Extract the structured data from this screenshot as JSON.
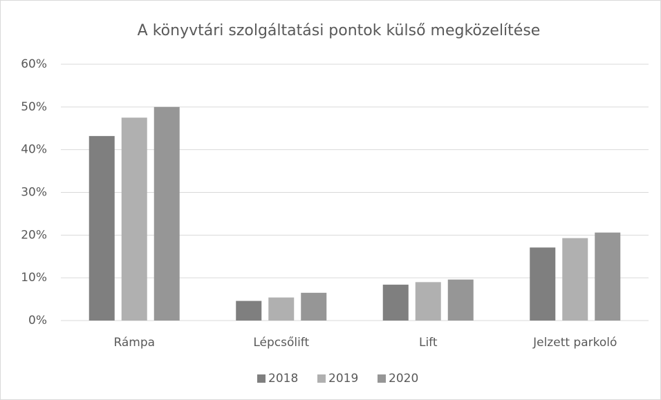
{
  "chart_data": {
    "type": "bar",
    "title": "A könyvtári szolgáltatási pontok külső megközelítése",
    "categories": [
      "Rámpa",
      "Lépcsőlift",
      "Lift",
      "Jelzett parkoló"
    ],
    "series": [
      {
        "name": "2018",
        "color": "#7f7f7f",
        "values": [
          43.2,
          4.6,
          8.4,
          17.1
        ]
      },
      {
        "name": "2019",
        "color": "#b0b0b0",
        "values": [
          47.5,
          5.4,
          9.0,
          19.3
        ]
      },
      {
        "name": "2020",
        "color": "#969696",
        "values": [
          50.0,
          6.5,
          9.6,
          20.6
        ]
      }
    ],
    "ylim": [
      0,
      60
    ],
    "yticks": [
      {
        "value": 0,
        "label": "0%"
      },
      {
        "value": 10,
        "label": "10%"
      },
      {
        "value": 20,
        "label": "20%"
      },
      {
        "value": 30,
        "label": "30%"
      },
      {
        "value": 40,
        "label": "40%"
      },
      {
        "value": 50,
        "label": "50%"
      },
      {
        "value": 60,
        "label": "60%"
      }
    ],
    "grid": true,
    "legend": "bottom"
  }
}
